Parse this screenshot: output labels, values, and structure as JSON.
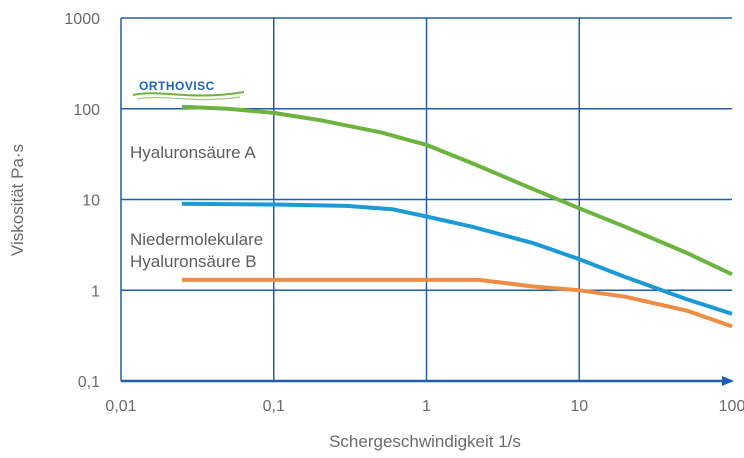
{
  "chart_data": {
    "type": "line",
    "title": "",
    "xlabel": "Schergeschwindigkeit 1/s",
    "ylabel": "Viskosität Pa·s",
    "x_scale": "log",
    "y_scale": "log",
    "xlim": [
      0.01,
      100
    ],
    "ylim": [
      0.1,
      1000
    ],
    "x_ticks": [
      "0,01",
      "0,1",
      "1",
      "10",
      "100"
    ],
    "y_ticks": [
      "1000",
      "100",
      "10",
      "1",
      "0,1"
    ],
    "grid": true,
    "series": [
      {
        "name": "ORTHOVISC",
        "color": "#6db33f",
        "points": [
          [
            0.025,
            105
          ],
          [
            0.05,
            100
          ],
          [
            0.1,
            90
          ],
          [
            0.2,
            75
          ],
          [
            0.5,
            55
          ],
          [
            1,
            40
          ],
          [
            2,
            25
          ],
          [
            5,
            13
          ],
          [
            10,
            8
          ],
          [
            20,
            5
          ],
          [
            50,
            2.6
          ],
          [
            100,
            1.5
          ]
        ]
      },
      {
        "name": "Niedermolekulare Hyaluronsäure B",
        "color": "#1b9ad6",
        "points": [
          [
            0.025,
            9
          ],
          [
            0.1,
            8.8
          ],
          [
            0.3,
            8.5
          ],
          [
            0.6,
            7.8
          ],
          [
            1,
            6.5
          ],
          [
            2,
            5
          ],
          [
            5,
            3.3
          ],
          [
            10,
            2.2
          ],
          [
            20,
            1.4
          ],
          [
            50,
            0.8
          ],
          [
            100,
            0.55
          ]
        ]
      },
      {
        "name": "Hyaluronsäure A",
        "color": "#ef8c43",
        "points": [
          [
            0.025,
            1.3
          ],
          [
            0.1,
            1.3
          ],
          [
            1,
            1.3
          ],
          [
            2.2,
            1.3
          ],
          [
            5,
            1.1
          ],
          [
            10,
            1.0
          ],
          [
            20,
            0.85
          ],
          [
            50,
            0.6
          ],
          [
            100,
            0.4
          ]
        ]
      }
    ],
    "annotations": {
      "hyaluron_a": "Hyaluronsäure A",
      "hyaluron_b_line1": "Niedermolekulare",
      "hyaluron_b_line2": "Hyaluronsäure B",
      "logo": "ORTHOVISC"
    },
    "colors": {
      "grid": "#1f5ea8",
      "axis_arrow": "#1f5ea8",
      "text": "#6b6b6b"
    }
  }
}
